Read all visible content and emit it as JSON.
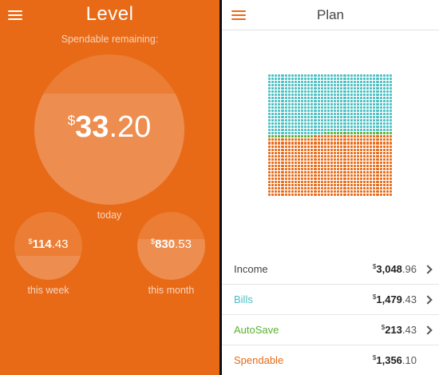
{
  "colors": {
    "brand": "#e86a17",
    "bills": "#4bbfc2",
    "autosave": "#5ab131",
    "spendable": "#e86a17"
  },
  "level": {
    "title": "Level",
    "spendable_label": "Spendable remaining:",
    "today": {
      "currency": "$",
      "dollars": "33",
      "cents": ".20",
      "caption": "today",
      "progress": 0.74
    },
    "week": {
      "currency": "$",
      "dollars": "114",
      "cents": ".43",
      "caption": "this week",
      "progress": 0.35
    },
    "month": {
      "currency": "$",
      "dollars": "830",
      "cents": ".53",
      "caption": "this month",
      "progress": 0.6
    }
  },
  "plan": {
    "title": "Plan",
    "rows": [
      {
        "label": "Income",
        "currency": "$",
        "dollars": "3,048",
        "cents": ".96",
        "color": "#444444",
        "chevron": true
      },
      {
        "label": "Bills",
        "currency": "$",
        "dollars": "1,479",
        "cents": ".43",
        "color": "#4bbfc2",
        "chevron": true
      },
      {
        "label": "AutoSave",
        "currency": "$",
        "dollars": "213",
        "cents": ".43",
        "color": "#5ab131",
        "chevron": true
      },
      {
        "label": "Spendable",
        "currency": "$",
        "dollars": "1,356",
        "cents": ".10",
        "color": "#e86a17",
        "chevron": false
      }
    ],
    "allocation": {
      "total_dots": 1444,
      "bills": 1479.43,
      "autosave": 213.43,
      "spendable": 1356.1
    }
  }
}
